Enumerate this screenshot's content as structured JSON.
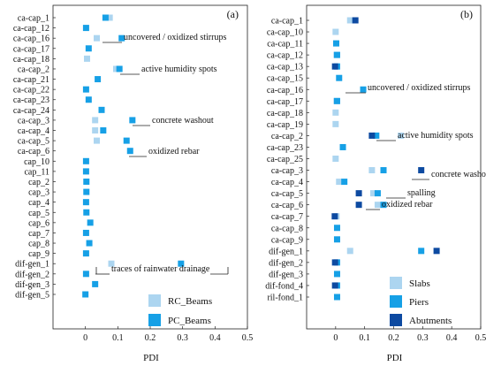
{
  "chart_data": [
    {
      "type": "scatter",
      "panel_label": "(a)",
      "xlabel": "PDI",
      "ylabel": "",
      "xlim": [
        -0.1,
        0.5
      ],
      "xticks": [
        "0",
        "0.1",
        "0.2",
        "0.3",
        "0.4",
        "0.5"
      ],
      "xtick_values": [
        0,
        0.1,
        0.2,
        0.3,
        0.4,
        0.5
      ],
      "grid": false,
      "legend_position": "bottom-right",
      "categories": [
        "ca-cap_1",
        "ca-cap_12",
        "ca-cap_16",
        "ca-cap_17",
        "ca-cap_18",
        "ca-cap_2",
        "ca-cap_21",
        "ca-cap_22",
        "ca-cap_23",
        "ca-cap_24",
        "ca-cap_3",
        "ca-cap_4",
        "ca-cap_5",
        "ca-cap_6",
        "cap_10",
        "cap_11",
        "cap_2",
        "cap_3",
        "cap_4",
        "cap_5",
        "cap_6",
        "cap_7",
        "cap_8",
        "cap_9",
        "dif-gen_1",
        "dif-gen_2",
        "dif-gen_3",
        "dif-gen_5"
      ],
      "series": [
        {
          "name": "RC_Beams",
          "color": "#acd5f0",
          "values": [
            0.075,
            null,
            0.035,
            null,
            0.005,
            0.095,
            null,
            null,
            null,
            null,
            0.03,
            0.03,
            0.035,
            null,
            null,
            null,
            null,
            null,
            null,
            null,
            null,
            null,
            null,
            null,
            0.08,
            null,
            null,
            null
          ]
        },
        {
          "name": "PC_Beams",
          "color": "#16a0e6",
          "values": [
            0.062,
            0.002,
            0.112,
            0.01,
            null,
            0.105,
            0.038,
            0.002,
            0.01,
            0.05,
            0.145,
            0.055,
            0.127,
            0.138,
            0.002,
            0.002,
            0.003,
            0.003,
            0.002,
            0.003,
            0.015,
            0.002,
            0.012,
            0.002,
            0.295,
            0.002,
            0.03,
            0.0
          ]
        }
      ],
      "annotations": [
        "uncovered / oxidized stirrups",
        "active humidity spots",
        "concrete washout",
        "oxidized rebar",
        "traces of rainwater drainage"
      ]
    },
    {
      "type": "scatter",
      "panel_label": "(b)",
      "xlabel": "PDI",
      "ylabel": "",
      "xlim": [
        -0.1,
        0.5
      ],
      "xticks": [
        "0",
        "0.1",
        "0.2",
        "0.3",
        "0.4",
        "0.5"
      ],
      "xtick_values": [
        0,
        0.1,
        0.2,
        0.3,
        0.4,
        0.5
      ],
      "grid": false,
      "legend_position": "bottom-right",
      "categories": [
        "ca-cap_1",
        "ca-cap_10",
        "ca-cap_11",
        "ca-cap_12",
        "ca-cap_13",
        "ca-cap_15",
        "ca-cap_16",
        "ca-cap_17",
        "ca-cap_18",
        "ca-cap_19",
        "ca-cap_2",
        "ca-cap_23",
        "ca-cap_25",
        "ca-cap_3",
        "ca-cap_4",
        "ca-cap_5",
        "ca-cap_6",
        "ca-cap_7",
        "ca-cap_8",
        "ca-cap_9",
        "dif-gen_1",
        "dif-gen_2",
        "dif-gen_3",
        "dif-fond_4",
        "ril-fond_1"
      ],
      "series": [
        {
          "name": "Slabs",
          "color": "#acd5f0",
          "values": [
            0.05,
            0.0,
            null,
            0.003,
            null,
            null,
            null,
            0.003,
            0.0,
            0.0,
            0.225,
            null,
            0.0,
            0.125,
            0.012,
            0.13,
            0.145,
            0.003,
            null,
            null,
            0.05,
            null,
            null,
            null,
            null
          ]
        },
        {
          "name": "Piers",
          "color": "#16a0e6",
          "values": [
            null,
            null,
            0.002,
            0.005,
            0.005,
            0.012,
            0.095,
            0.005,
            null,
            null,
            0.14,
            0.025,
            null,
            0.165,
            0.03,
            0.145,
            0.165,
            null,
            0.005,
            0.005,
            0.295,
            0.005,
            0.005,
            0.005,
            0.005
          ]
        },
        {
          "name": "Abutments",
          "color": "#0d4aa1",
          "values": [
            0.068,
            null,
            null,
            null,
            -0.002,
            null,
            null,
            null,
            null,
            null,
            0.125,
            null,
            null,
            0.295,
            null,
            0.08,
            0.08,
            -0.003,
            null,
            null,
            0.348,
            -0.002,
            null,
            -0.002,
            null
          ]
        }
      ],
      "annotations": [
        "uncovered / oxidized stirrups",
        "active humidity spots",
        "concrete washout",
        "spalling",
        "oxidized rebar"
      ]
    }
  ]
}
